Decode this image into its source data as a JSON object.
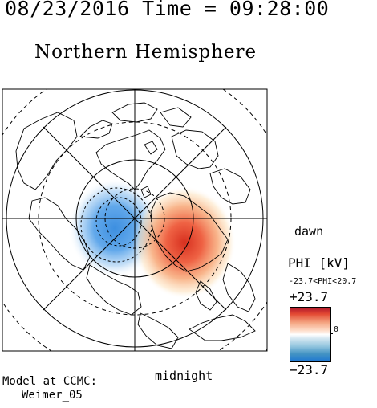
{
  "header": {
    "time": "08/23/2016 Time = 09:28:00"
  },
  "title": "Northern Hemisphere",
  "orientation": {
    "dawn": "dawn",
    "midnight": "midnight"
  },
  "legend": {
    "title": "PHI [kV]",
    "range": "-23.7<PHI<20.7",
    "max_label": "+23.7",
    "min_label": "−23.7",
    "zero_label": "0",
    "colors": [
      "#b2182b",
      "#f4a582",
      "#ffffff",
      "#92c5de",
      "#1f78d2"
    ]
  },
  "credit": {
    "line1": "Model at CCMC:",
    "line2": "Weimer_05"
  },
  "map": {
    "projection": "polar north pole",
    "potential_cells": [
      {
        "name": "positive-cell",
        "sign": "positive",
        "color": "#e34a33"
      },
      {
        "name": "negative-cell",
        "sign": "negative",
        "color": "#3d8fe0"
      }
    ]
  }
}
